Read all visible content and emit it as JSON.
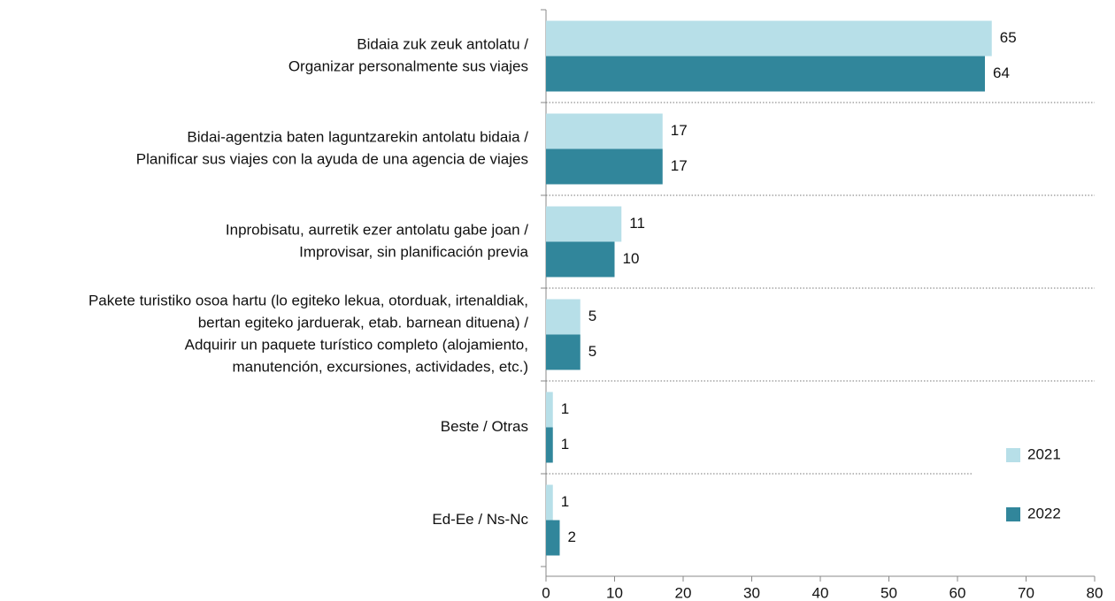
{
  "chart_data": {
    "type": "hbar",
    "categories": [
      [
        "Bidaia zuk zeuk antolatu /",
        "Organizar personalmente sus viajes"
      ],
      [
        "Bidai-agentzia baten laguntzarekin antolatu bidaia /",
        "Planificar sus viajes con la ayuda de una agencia de viajes"
      ],
      [
        "Inprobisatu, aurretik ezer antolatu gabe joan /",
        "Improvisar, sin planificación previa"
      ],
      [
        "Pakete turistiko osoa hartu (lo egiteko lekua, otorduak, irtenaldiak,",
        "bertan egiteko jarduerak, etab. barnean dituena) /",
        "Adquirir un paquete turístico completo (alojamiento,",
        "manutención, excursiones, actividades, etc.)"
      ],
      [
        "Beste / Otras"
      ],
      [
        "Ed-Ee / Ns-Nc"
      ]
    ],
    "series": [
      {
        "name": "2021",
        "color": "#b7dfe8",
        "values": [
          65,
          17,
          11,
          5,
          1,
          1
        ]
      },
      {
        "name": "2022",
        "color": "#31869b",
        "values": [
          64,
          17,
          10,
          5,
          1,
          2
        ]
      }
    ],
    "xlim": [
      0,
      80
    ],
    "xticks": [
      0,
      10,
      20,
      30,
      40,
      50,
      60,
      70,
      80
    ],
    "legend": "lower right"
  }
}
